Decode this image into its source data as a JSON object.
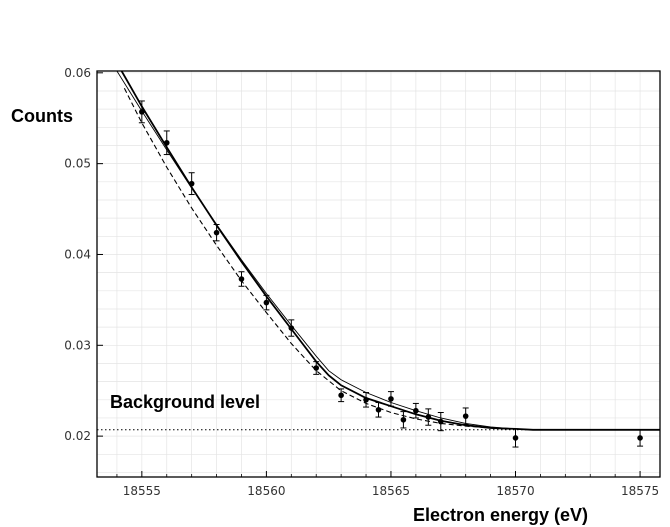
{
  "chart_data": {
    "type": "scatter",
    "ylabel": "Counts",
    "xlabel": "Electron energy (eV)",
    "annotation": "Background level",
    "xlim": [
      18553.2,
      18575.8
    ],
    "ylim": [
      0.0155,
      0.0602
    ],
    "x_ticks": [
      {
        "value": 18555,
        "label": "18555"
      },
      {
        "value": 18560,
        "label": "18560"
      },
      {
        "value": 18565,
        "label": "18565"
      },
      {
        "value": 18570,
        "label": "18570"
      },
      {
        "value": 18575,
        "label": "18575"
      }
    ],
    "y_ticks": [
      {
        "value": 0.02,
        "label": "0.02"
      },
      {
        "value": 0.03,
        "label": "0.03"
      },
      {
        "value": 0.04,
        "label": "0.04"
      },
      {
        "value": 0.05,
        "label": "0.05"
      },
      {
        "value": 0.06,
        "label": "0.06"
      }
    ],
    "background_level": 0.0207,
    "points": [
      {
        "x": 18555.0,
        "y": 0.0557,
        "err": 0.0012
      },
      {
        "x": 18556.0,
        "y": 0.0523,
        "err": 0.0013
      },
      {
        "x": 18557.0,
        "y": 0.0478,
        "err": 0.0012
      },
      {
        "x": 18558.0,
        "y": 0.0424,
        "err": 0.0009
      },
      {
        "x": 18559.0,
        "y": 0.0373,
        "err": 0.0008
      },
      {
        "x": 18560.0,
        "y": 0.0347,
        "err": 0.0008
      },
      {
        "x": 18561.0,
        "y": 0.0319,
        "err": 0.0009
      },
      {
        "x": 18562.0,
        "y": 0.0275,
        "err": 0.0007
      },
      {
        "x": 18563.0,
        "y": 0.0245,
        "err": 0.0007
      },
      {
        "x": 18564.0,
        "y": 0.024,
        "err": 0.0008
      },
      {
        "x": 18564.5,
        "y": 0.0229,
        "err": 0.0008
      },
      {
        "x": 18565.0,
        "y": 0.0241,
        "err": 0.0008
      },
      {
        "x": 18565.5,
        "y": 0.0218,
        "err": 0.0009
      },
      {
        "x": 18566.0,
        "y": 0.0228,
        "err": 0.0008
      },
      {
        "x": 18566.5,
        "y": 0.0221,
        "err": 0.0009
      },
      {
        "x": 18567.0,
        "y": 0.0216,
        "err": 0.001
      },
      {
        "x": 18568.0,
        "y": 0.0222,
        "err": 0.0009
      },
      {
        "x": 18570.0,
        "y": 0.0198,
        "err": 0.001
      },
      {
        "x": 18575.0,
        "y": 0.0198,
        "err": 0.0009
      }
    ],
    "series": [
      {
        "style": "solid-thick",
        "x": [
          18554.0,
          18555.0,
          18556.0,
          18557.0,
          18558.0,
          18559.0,
          18560.0,
          18561.0,
          18562.0,
          18562.5,
          18563.0,
          18564.0,
          18565.0,
          18566.0,
          18567.0,
          18568.0,
          18569.0,
          18570.0,
          18570.7,
          18576.0
        ],
        "y": [
          0.0611,
          0.0563,
          0.0518,
          0.0474,
          0.0432,
          0.0392,
          0.0354,
          0.0318,
          0.0282,
          0.0267,
          0.0256,
          0.0242,
          0.0233,
          0.0224,
          0.0217,
          0.0212,
          0.0209,
          0.0208,
          0.0207,
          0.0207
        ]
      },
      {
        "style": "solid-thin",
        "x": [
          18554.0,
          18555.0,
          18556.0,
          18557.0,
          18558.0,
          18559.0,
          18560.0,
          18561.0,
          18562.0,
          18562.5,
          18563.0,
          18564.0,
          18565.0,
          18566.0,
          18567.0,
          18568.0,
          18569.0,
          18570.0,
          18570.7,
          18576.0
        ],
        "y": [
          0.0602,
          0.0558,
          0.0515,
          0.0473,
          0.0433,
          0.0394,
          0.0357,
          0.0322,
          0.0288,
          0.0272,
          0.0262,
          0.0248,
          0.0237,
          0.0228,
          0.022,
          0.0214,
          0.021,
          0.0208,
          0.0207,
          0.0207
        ]
      },
      {
        "style": "dashed",
        "x": [
          18554.3,
          18555.0,
          18556.0,
          18557.0,
          18558.0,
          18559.0,
          18560.0,
          18561.0,
          18562.0,
          18563.0,
          18564.0,
          18565.0,
          18566.0,
          18567.0,
          18568.0,
          18569.0,
          18570.0
        ],
        "y": [
          0.0583,
          0.0545,
          0.0496,
          0.0451,
          0.041,
          0.0371,
          0.0336,
          0.0302,
          0.0272,
          0.025,
          0.0236,
          0.0226,
          0.0219,
          0.0214,
          0.0211,
          0.0209,
          0.0208
        ]
      }
    ],
    "grid": true
  }
}
